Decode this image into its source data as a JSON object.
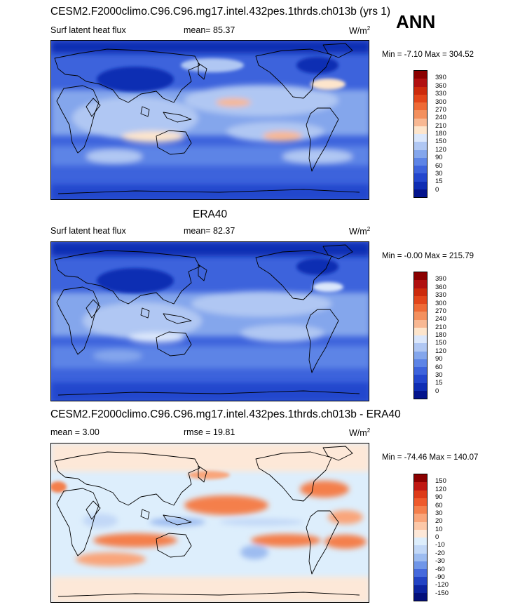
{
  "ann_label": "ANN",
  "panels": [
    {
      "title": "CESM2.F2000climo.C96.C96.mg17.intel.432pes.1thrds.ch013b (yrs 1)",
      "left_label": "Surf latent heat flux",
      "mid_label": "mean=  85.37",
      "units": "W/m",
      "units_sup": "2",
      "minmax": "Min =  -7.10 Max = 304.52",
      "colorbar_levels": [
        "390",
        "360",
        "330",
        "300",
        "270",
        "240",
        "210",
        "180",
        "150",
        "120",
        "90",
        "60",
        "30",
        "15",
        "0"
      ],
      "colorbar_colors": [
        "#8b0000",
        "#b01010",
        "#cc2a0c",
        "#e2451a",
        "#ee6a36",
        "#f3905e",
        "#f8b893",
        "#fde5cc",
        "#dbe7fb",
        "#b0c7f3",
        "#84a6ec",
        "#5d84e6",
        "#3d63dc",
        "#2346cd",
        "#0f2db3",
        "#04148c"
      ]
    },
    {
      "title": "ERA40",
      "left_label": "Surf latent heat flux",
      "mid_label": "mean=  82.37",
      "units": "W/m",
      "units_sup": "2",
      "minmax": "Min =  -0.00 Max = 215.79",
      "colorbar_levels": [
        "390",
        "360",
        "330",
        "300",
        "270",
        "240",
        "210",
        "180",
        "150",
        "120",
        "90",
        "60",
        "30",
        "15",
        "0"
      ],
      "colorbar_colors": [
        "#8b0000",
        "#b01010",
        "#cc2a0c",
        "#e2451a",
        "#ee6a36",
        "#f3905e",
        "#f8b893",
        "#fde5cc",
        "#dbe7fb",
        "#b0c7f3",
        "#84a6ec",
        "#5d84e6",
        "#3d63dc",
        "#2346cd",
        "#0f2db3",
        "#04148c"
      ]
    },
    {
      "title": "CESM2.F2000climo.C96.C96.mg17.intel.432pes.1thrds.ch013b - ERA40",
      "left_label": "mean =   3.00",
      "mid_label": "rmse =  19.81",
      "units": "W/m",
      "units_sup": "2",
      "minmax": "Min = -74.46 Max = 140.07",
      "colorbar_levels": [
        "150",
        "120",
        "90",
        "60",
        "30",
        "20",
        "10",
        "0",
        "-10",
        "-20",
        "-30",
        "-60",
        "-90",
        "-120",
        "-150"
      ],
      "colorbar_colors": [
        "#8b0000",
        "#c01812",
        "#dd3a18",
        "#ee5a2c",
        "#f47f4c",
        "#f9a57a",
        "#fcc8a8",
        "#fde8d8",
        "#ddeefc",
        "#c2d8f7",
        "#9dbcf0",
        "#7096e8",
        "#4569dc",
        "#2243c4",
        "#0c24a0",
        "#04107a"
      ]
    }
  ],
  "chart_data": [
    {
      "type": "heatmap",
      "title": "CESM2.F2000climo.C96.C96.mg17.intel.432pes.1thrds.ch013b (yrs 1)",
      "variable": "Surf latent heat flux",
      "units": "W/m2",
      "mean": 85.37,
      "min": -7.1,
      "max": 304.52,
      "contour_levels": [
        0,
        15,
        30,
        60,
        90,
        120,
        150,
        180,
        210,
        240,
        270,
        300,
        330,
        360,
        390
      ]
    },
    {
      "type": "heatmap",
      "title": "ERA40",
      "variable": "Surf latent heat flux",
      "units": "W/m2",
      "mean": 82.37,
      "min": -0.0,
      "max": 215.79,
      "contour_levels": [
        0,
        15,
        30,
        60,
        90,
        120,
        150,
        180,
        210,
        240,
        270,
        300,
        330,
        360,
        390
      ]
    },
    {
      "type": "heatmap",
      "title": "CESM2.F2000climo.C96.C96.mg17.intel.432pes.1thrds.ch013b - ERA40",
      "units": "W/m2",
      "mean": 3.0,
      "rmse": 19.81,
      "min": -74.46,
      "max": 140.07,
      "contour_levels": [
        -150,
        -120,
        -90,
        -60,
        -30,
        -20,
        -10,
        0,
        10,
        20,
        30,
        60,
        90,
        120,
        150
      ]
    }
  ]
}
